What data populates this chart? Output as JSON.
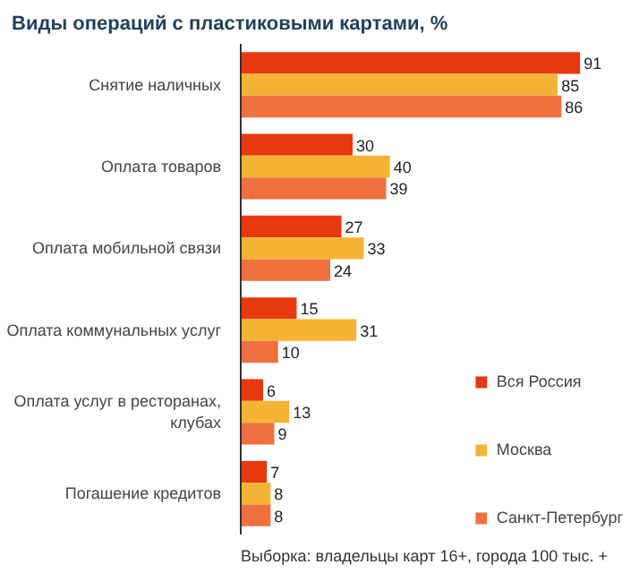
{
  "chart_data": {
    "type": "bar",
    "orientation": "horizontal",
    "title": "Виды операций с пластиковыми картами, %",
    "categories": [
      "Снятие наличных",
      "Оплата товаров",
      "Оплата мобильной связи",
      "Оплата коммунальных услуг",
      "Оплата услуг в ресторанах, клубах",
      "Погашение кредитов"
    ],
    "series": [
      {
        "name": "Вся Россия",
        "color": "#e8380d",
        "values": [
          91,
          30,
          27,
          15,
          6,
          7
        ]
      },
      {
        "name": "Москва",
        "color": "#f5b335",
        "values": [
          85,
          40,
          33,
          31,
          13,
          8
        ]
      },
      {
        "name": "Санкт-Петербург",
        "color": "#f0703e",
        "values": [
          86,
          39,
          24,
          10,
          9,
          8
        ]
      }
    ],
    "data_labels": true,
    "legend": "bottom right",
    "annotations": [
      "Выборка: владельцы карт 16+, города 100 тыс. +"
    ]
  }
}
